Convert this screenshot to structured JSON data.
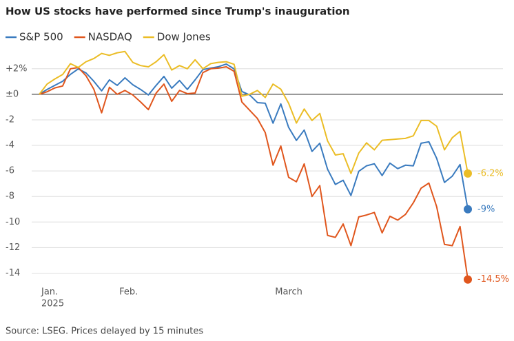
{
  "chart_data": {
    "type": "line",
    "title": "How US stocks have performed since Trump's inauguration",
    "source": "Source: LSEG. Prices delayed by 15 minutes",
    "categories": [
      "Jan.",
      null,
      null,
      null,
      null,
      null,
      null,
      null,
      null,
      null,
      "Feb.",
      null,
      null,
      null,
      null,
      null,
      null,
      null,
      null,
      null,
      null,
      null,
      null,
      null,
      null,
      null,
      null,
      null,
      null,
      null,
      "March",
      null,
      null,
      null,
      null,
      null,
      null,
      null,
      null,
      null,
      null,
      null,
      null,
      null,
      null,
      null,
      null,
      null,
      null,
      null,
      null,
      null,
      null,
      null,
      null,
      null
    ],
    "year": "2025",
    "ylim": [
      -15,
      3.5
    ],
    "yticks": [
      {
        "value": 2,
        "label": "+2%"
      },
      {
        "value": 0,
        "label": "±0"
      },
      -2,
      -4,
      -6,
      -8,
      -10,
      -12,
      -14
    ],
    "grid": true,
    "series": [
      {
        "name": "S&P 500",
        "color": "#3a7bbf",
        "values": [
          0,
          0.38,
          0.7,
          1.02,
          1.56,
          1.99,
          1.67,
          1.02,
          0.27,
          1.13,
          0.7,
          1.29,
          0.75,
          0.38,
          -0.05,
          0.7,
          1.4,
          0.48,
          1.08,
          0.38,
          1.13,
          1.94,
          2.05,
          2.16,
          2.37,
          1.99,
          0.22,
          -0.05,
          -0.65,
          -0.7,
          -2.26,
          -0.75,
          -2.59,
          -3.61,
          -2.8,
          -4.47,
          -3.83,
          -5.87,
          -7.06,
          -6.73,
          -7.92,
          -6.03,
          -5.6,
          -5.44,
          -6.36,
          -5.39,
          -5.82,
          -5.55,
          -5.6,
          -3.83,
          -3.72,
          -5.01,
          -6.9,
          -6.41,
          -5.5,
          -9
        ],
        "value_labels": [
          null,
          null,
          null,
          null,
          null,
          null,
          null,
          null,
          null,
          null,
          null,
          null,
          null,
          null,
          null,
          null,
          null,
          null,
          null,
          null,
          null,
          null,
          null,
          null,
          null,
          null,
          null,
          null,
          null,
          null,
          null,
          null,
          null,
          null,
          null,
          null,
          null,
          null,
          null,
          null,
          null,
          null,
          null,
          null,
          null,
          null,
          null,
          null,
          null,
          null,
          null,
          null,
          null,
          null,
          null,
          "-9%"
        ]
      },
      {
        "name": "NASDAQ",
        "color": "#e0561d",
        "values": [
          0,
          0.2,
          0.5,
          0.65,
          2.0,
          2.1,
          1.45,
          0.4,
          -1.45,
          0.55,
          0,
          0.3,
          -0.05,
          -0.6,
          -1.2,
          0.1,
          0.8,
          -0.55,
          0.3,
          0.05,
          0.1,
          1.7,
          2.0,
          2.05,
          2.15,
          1.8,
          -0.6,
          -1.25,
          -1.9,
          -3.0,
          -5.55,
          -4.05,
          -6.5,
          -6.85,
          -5.45,
          -8.0,
          -7.15,
          -11.05,
          -11.2,
          -10.15,
          -11.85,
          -9.6,
          -9.45,
          -9.25,
          -10.85,
          -9.55,
          -9.85,
          -9.4,
          -8.5,
          -7.35,
          -6.95,
          -8.8,
          -11.75,
          -11.85,
          -10.35,
          -14.5
        ],
        "value_labels": [
          null,
          null,
          null,
          null,
          null,
          null,
          null,
          null,
          null,
          null,
          null,
          null,
          null,
          null,
          null,
          null,
          null,
          null,
          null,
          null,
          null,
          null,
          null,
          null,
          null,
          null,
          null,
          null,
          null,
          null,
          null,
          null,
          null,
          null,
          null,
          null,
          null,
          null,
          null,
          null,
          null,
          null,
          null,
          null,
          null,
          null,
          null,
          null,
          null,
          null,
          null,
          null,
          null,
          null,
          null,
          "-14.5%"
        ]
      },
      {
        "name": "Dow Jones",
        "color": "#ebbd26",
        "values": [
          0,
          0.8,
          1.2,
          1.55,
          2.4,
          2.1,
          2.55,
          2.8,
          3.2,
          3.05,
          3.25,
          3.35,
          2.5,
          2.25,
          2.15,
          2.55,
          3.1,
          1.9,
          2.25,
          2.0,
          2.7,
          2.0,
          2.4,
          2.5,
          2.55,
          2.35,
          -0.15,
          0,
          0.3,
          -0.25,
          0.8,
          0.4,
          -0.7,
          -2.25,
          -1.15,
          -2.05,
          -1.5,
          -3.65,
          -4.75,
          -4.65,
          -6.2,
          -4.6,
          -3.8,
          -4.35,
          -3.6,
          -3.55,
          -3.5,
          -3.45,
          -3.25,
          -2.05,
          -2.05,
          -2.5,
          -4.35,
          -3.4,
          -2.9,
          -6.2
        ],
        "value_labels": [
          null,
          null,
          null,
          null,
          null,
          null,
          null,
          null,
          null,
          null,
          null,
          null,
          null,
          null,
          null,
          null,
          null,
          null,
          null,
          null,
          null,
          null,
          null,
          null,
          null,
          null,
          null,
          null,
          null,
          null,
          null,
          null,
          null,
          null,
          null,
          null,
          null,
          null,
          null,
          null,
          null,
          null,
          null,
          null,
          null,
          null,
          null,
          null,
          null,
          null,
          null,
          null,
          null,
          null,
          null,
          "-6.2%"
        ]
      }
    ]
  }
}
